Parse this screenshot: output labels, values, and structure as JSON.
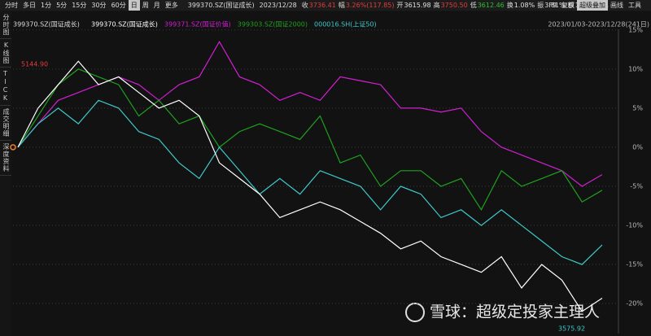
{
  "toolbar": {
    "tabs": [
      "分时",
      "多日",
      "1分",
      "5分",
      "15分",
      "30分",
      "60分",
      "日",
      "周",
      "月",
      "更多"
    ],
    "active": 7,
    "right": [
      "F9",
      "复权",
      "超级叠加",
      "画线",
      "工具"
    ],
    "right_active": 2
  },
  "quote": {
    "code": "399370.SZ(国证成长)",
    "date": "2023/12/28",
    "items": [
      {
        "label": "收",
        "value": "3736.41",
        "color": "#e83a3a"
      },
      {
        "label": "幅",
        "value": "3.26%(117.85)",
        "color": "#e83a3a"
      },
      {
        "label": "开",
        "value": "3615.98",
        "color": "#e0e0e0"
      },
      {
        "label": "高",
        "value": "3750.50",
        "color": "#e83a3a"
      },
      {
        "label": "低",
        "value": "3612.46",
        "color": "#2fbf2f"
      },
      {
        "label": "换",
        "value": "1.08%",
        "color": "#e0e0e0"
      },
      {
        "label": "振",
        "value": "3.81%",
        "color": "#e0e0e0"
      },
      {
        "label": "额",
        "value": "1936.32亿",
        "color": "#e0e0e0"
      }
    ]
  },
  "sidebar": [
    "分时图",
    "K线图",
    "TICK",
    "成交明细",
    "深度资料"
  ],
  "chart_data": {
    "type": "line",
    "range_label": "2023/01/03-2023/12/28(241日)",
    "ylim": [
      -23,
      15.5
    ],
    "yticks": [
      {
        "value": 15,
        "label": "15%"
      },
      {
        "value": 10,
        "label": "10%"
      },
      {
        "value": 5,
        "label": "5%"
      },
      {
        "value": 0,
        "label": "0%"
      },
      {
        "value": -5,
        "label": "-5%"
      },
      {
        "value": -10,
        "label": "-10%"
      },
      {
        "value": -15,
        "label": "-15%"
      },
      {
        "value": -20,
        "label": "-20%"
      }
    ],
    "grid": true,
    "series": [
      {
        "name": "399370.SZ(国证成长)",
        "color": "#ffffff",
        "values": [
          0,
          5,
          8,
          11,
          8,
          9,
          7,
          5,
          6,
          4,
          -2,
          -4,
          -6,
          -9,
          -8,
          -7,
          -8,
          -9.5,
          -11,
          -13,
          -12,
          -14,
          -15,
          -16,
          -14,
          -18,
          -15,
          -17,
          -21,
          -19.3
        ]
      },
      {
        "name": "399371.SZ(国证价值)",
        "color": "#d21fd2",
        "values": [
          0,
          3,
          6,
          7,
          8,
          9,
          8,
          6,
          8,
          9,
          13.5,
          9,
          8,
          6,
          7,
          6,
          9,
          8.5,
          8,
          5,
          5,
          4.5,
          5,
          2,
          0,
          -1,
          -2,
          -3,
          -5,
          -3.5
        ]
      },
      {
        "name": "399303.SZ(国证2000)",
        "color": "#1fa01f",
        "values": [
          0,
          4,
          8,
          10,
          9,
          8,
          4,
          6,
          3,
          4,
          0,
          2,
          3,
          2,
          1,
          4,
          -2,
          -1,
          -5,
          -3,
          -3,
          -5,
          -4,
          -8,
          -3,
          -5,
          -4,
          -3,
          -7,
          -5.5
        ]
      },
      {
        "name": "000016.SH(上证50)",
        "color": "#3ec8c8",
        "values": [
          0,
          3,
          5,
          3,
          6,
          5,
          2,
          1,
          -2,
          -4,
          0,
          -3,
          -6,
          -4,
          -6,
          -3,
          -4,
          -5,
          -8,
          -5,
          -6,
          -9,
          -8,
          -10,
          -8,
          -10,
          -12,
          -14,
          -15,
          -12.5
        ]
      }
    ],
    "annotations": [
      "5144.90",
      "3575.92"
    ]
  },
  "watermark": "雪球：超级定投家主理人"
}
